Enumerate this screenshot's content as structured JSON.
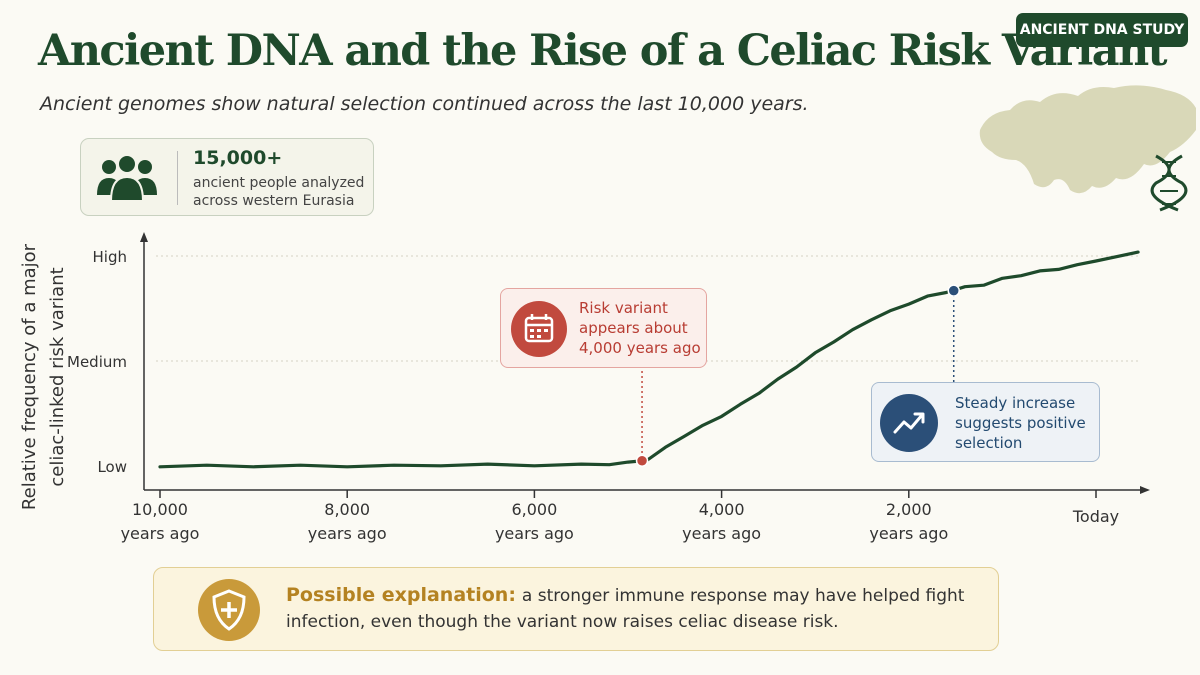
{
  "header": {
    "title": "Ancient DNA and the Rise of a Celiac Risk Variant",
    "subtitle": "Ancient genomes show natural selection continued across the last 10,000 years.",
    "badge": "ANCIENT DNA STUDY"
  },
  "stat": {
    "value": "15,000+",
    "desc_line1": "ancient people analyzed",
    "desc_line2": "across western Eurasia",
    "icon": "people-group-icon"
  },
  "decorations": {
    "map_icon": "eurasia-map-icon",
    "dna_icon": "dna-helix-icon"
  },
  "callouts": {
    "appears": {
      "lines": [
        "Risk variant",
        "appears about",
        "4,000 years ago"
      ],
      "icon": "calendar-icon"
    },
    "increase": {
      "lines": [
        "Steady increase",
        "suggests positive",
        "selection"
      ],
      "icon": "trend-up-icon"
    }
  },
  "explanation": {
    "lead": "Possible explanation:",
    "text": "a stronger immune response may have helped fight infection, even though the variant now raises celiac disease risk.",
    "icon": "shield-plus-icon"
  },
  "colors": {
    "primary_green": "#1f4a2c",
    "line": "#1e4a2b",
    "red_accent": "#c14a3e",
    "blue_accent": "#2b4f78",
    "gold_accent": "#c99a3a"
  },
  "chart_data": {
    "type": "line",
    "title": "",
    "ylabel_lines": [
      "Relative frequency of a major",
      "celiac-linked risk variant"
    ],
    "xlabel": "",
    "x_ticks": [
      {
        "value": 10000,
        "lines": [
          "10,000",
          "years ago"
        ]
      },
      {
        "value": 8000,
        "lines": [
          "8,000",
          "years ago"
        ]
      },
      {
        "value": 6000,
        "lines": [
          "6,000",
          "years ago"
        ]
      },
      {
        "value": 4000,
        "lines": [
          "4,000",
          "years ago"
        ]
      },
      {
        "value": 2000,
        "lines": [
          "2,000",
          "years ago"
        ]
      },
      {
        "value": 0,
        "lines": [
          "Today"
        ]
      }
    ],
    "y_ticks": [
      {
        "value": 0,
        "label": "Low"
      },
      {
        "value": 1,
        "label": "Medium"
      },
      {
        "value": 2,
        "label": "High"
      }
    ],
    "x_range": [
      10000,
      0
    ],
    "y_range": [
      0,
      2
    ],
    "grid": "dotted horizontal at Medium and High",
    "series": [
      {
        "x": [
          10000,
          9500,
          9000,
          8500,
          8000,
          7500,
          7000,
          6500,
          6000,
          5500,
          5200,
          5000,
          4800,
          4600,
          4400,
          4200,
          4000,
          3800,
          3600,
          3400,
          3200,
          3000,
          2800,
          2600,
          2400,
          2200,
          2000,
          1800,
          1600,
          1400,
          1200,
          1000,
          800,
          600,
          400,
          200,
          0,
          -450
        ],
        "y": [
          0.0,
          0.0,
          0.0,
          0.0,
          0.0,
          0.0,
          0.01,
          0.01,
          0.01,
          0.01,
          0.02,
          0.03,
          0.06,
          0.17,
          0.29,
          0.38,
          0.48,
          0.58,
          0.7,
          0.82,
          0.95,
          1.07,
          1.19,
          1.29,
          1.4,
          1.47,
          1.55,
          1.61,
          1.66,
          1.7,
          1.73,
          1.78,
          1.82,
          1.85,
          1.88,
          1.91,
          1.96,
          2.03
        ]
      }
    ],
    "points": [
      {
        "x": 4850,
        "y": 0.05,
        "color": "#c14a3e",
        "target": "appears"
      },
      {
        "x": 1520,
        "y": 1.67,
        "color": "#2b4f78",
        "target": "increase"
      }
    ]
  }
}
